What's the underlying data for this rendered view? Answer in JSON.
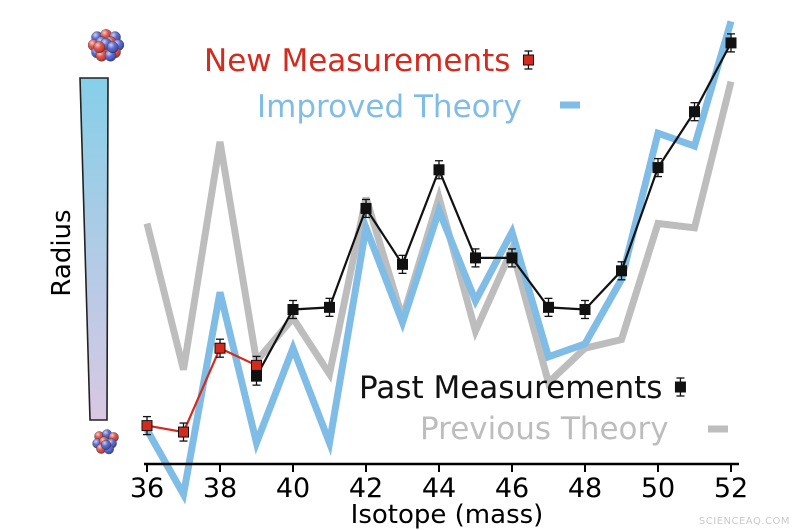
{
  "chart_data": {
    "type": "line",
    "xlabel": "Isotope (mass)",
    "ylabel": "Radius",
    "x_ticks": [
      36,
      38,
      40,
      42,
      44,
      46,
      48,
      50,
      52
    ],
    "xlim": [
      36,
      52
    ],
    "ylim": [
      0,
      100
    ],
    "grid": false,
    "legend": [
      {
        "label": "New Measurements",
        "series": "new",
        "position": "top-center"
      },
      {
        "label": "Improved Theory",
        "series": "improved",
        "position": "top-center"
      },
      {
        "label": "Past Measurements",
        "series": "past",
        "position": "bottom-right"
      },
      {
        "label": "Previous Theory",
        "series": "previous",
        "position": "bottom-right"
      }
    ],
    "series": [
      {
        "key": "previous",
        "name": "Previous Theory",
        "kind": "line",
        "color": "#bdbdbd",
        "x": [
          36,
          37,
          38,
          39,
          40,
          41,
          42,
          43,
          44,
          45,
          46,
          47,
          48,
          49,
          50,
          51,
          52
        ],
        "y": [
          55,
          21,
          74,
          23,
          33,
          20,
          61,
          33,
          61,
          30,
          49,
          18,
          26,
          28,
          55,
          54,
          88
        ]
      },
      {
        "key": "improved",
        "name": "Improved Theory",
        "kind": "line",
        "color": "#80bde6",
        "x": [
          36,
          37,
          38,
          39,
          40,
          41,
          42,
          43,
          44,
          45,
          46,
          47,
          48,
          49,
          50,
          51,
          52
        ],
        "y": [
          7,
          -8,
          39,
          4,
          26,
          4,
          54,
          32,
          58,
          37,
          53,
          24,
          27,
          42,
          76,
          73,
          102
        ]
      },
      {
        "key": "past",
        "name": "Past Measurements",
        "kind": "markers",
        "color": "#111111",
        "x": [
          39,
          40,
          41,
          42,
          43,
          44,
          45,
          46,
          47,
          48,
          49,
          50,
          51,
          52
        ],
        "y": [
          19.5,
          35,
          35.5,
          58.5,
          45.5,
          67.5,
          47,
          47,
          35.5,
          35,
          44,
          68,
          81,
          97
        ]
      },
      {
        "key": "new",
        "name": "New Measurements",
        "kind": "markers",
        "color": "#d42b1f",
        "x": [
          36,
          37,
          38,
          39
        ],
        "y": [
          8,
          6.5,
          26,
          22
        ]
      }
    ]
  },
  "colors": {
    "new": "#d42b1f",
    "improved": "#80bde6",
    "past": "#111111",
    "previous": "#bdbdbd",
    "radius_bar_top": "#86cfe8",
    "radius_bar_bottom": "#d9c8e4",
    "proton": "#d9352b",
    "neutron": "#3f4fc4"
  },
  "icons": {
    "large_nucleus": "atom-nucleus-large-icon",
    "small_nucleus": "atom-nucleus-small-icon"
  },
  "watermark": "SCIENCEAQ.COM"
}
